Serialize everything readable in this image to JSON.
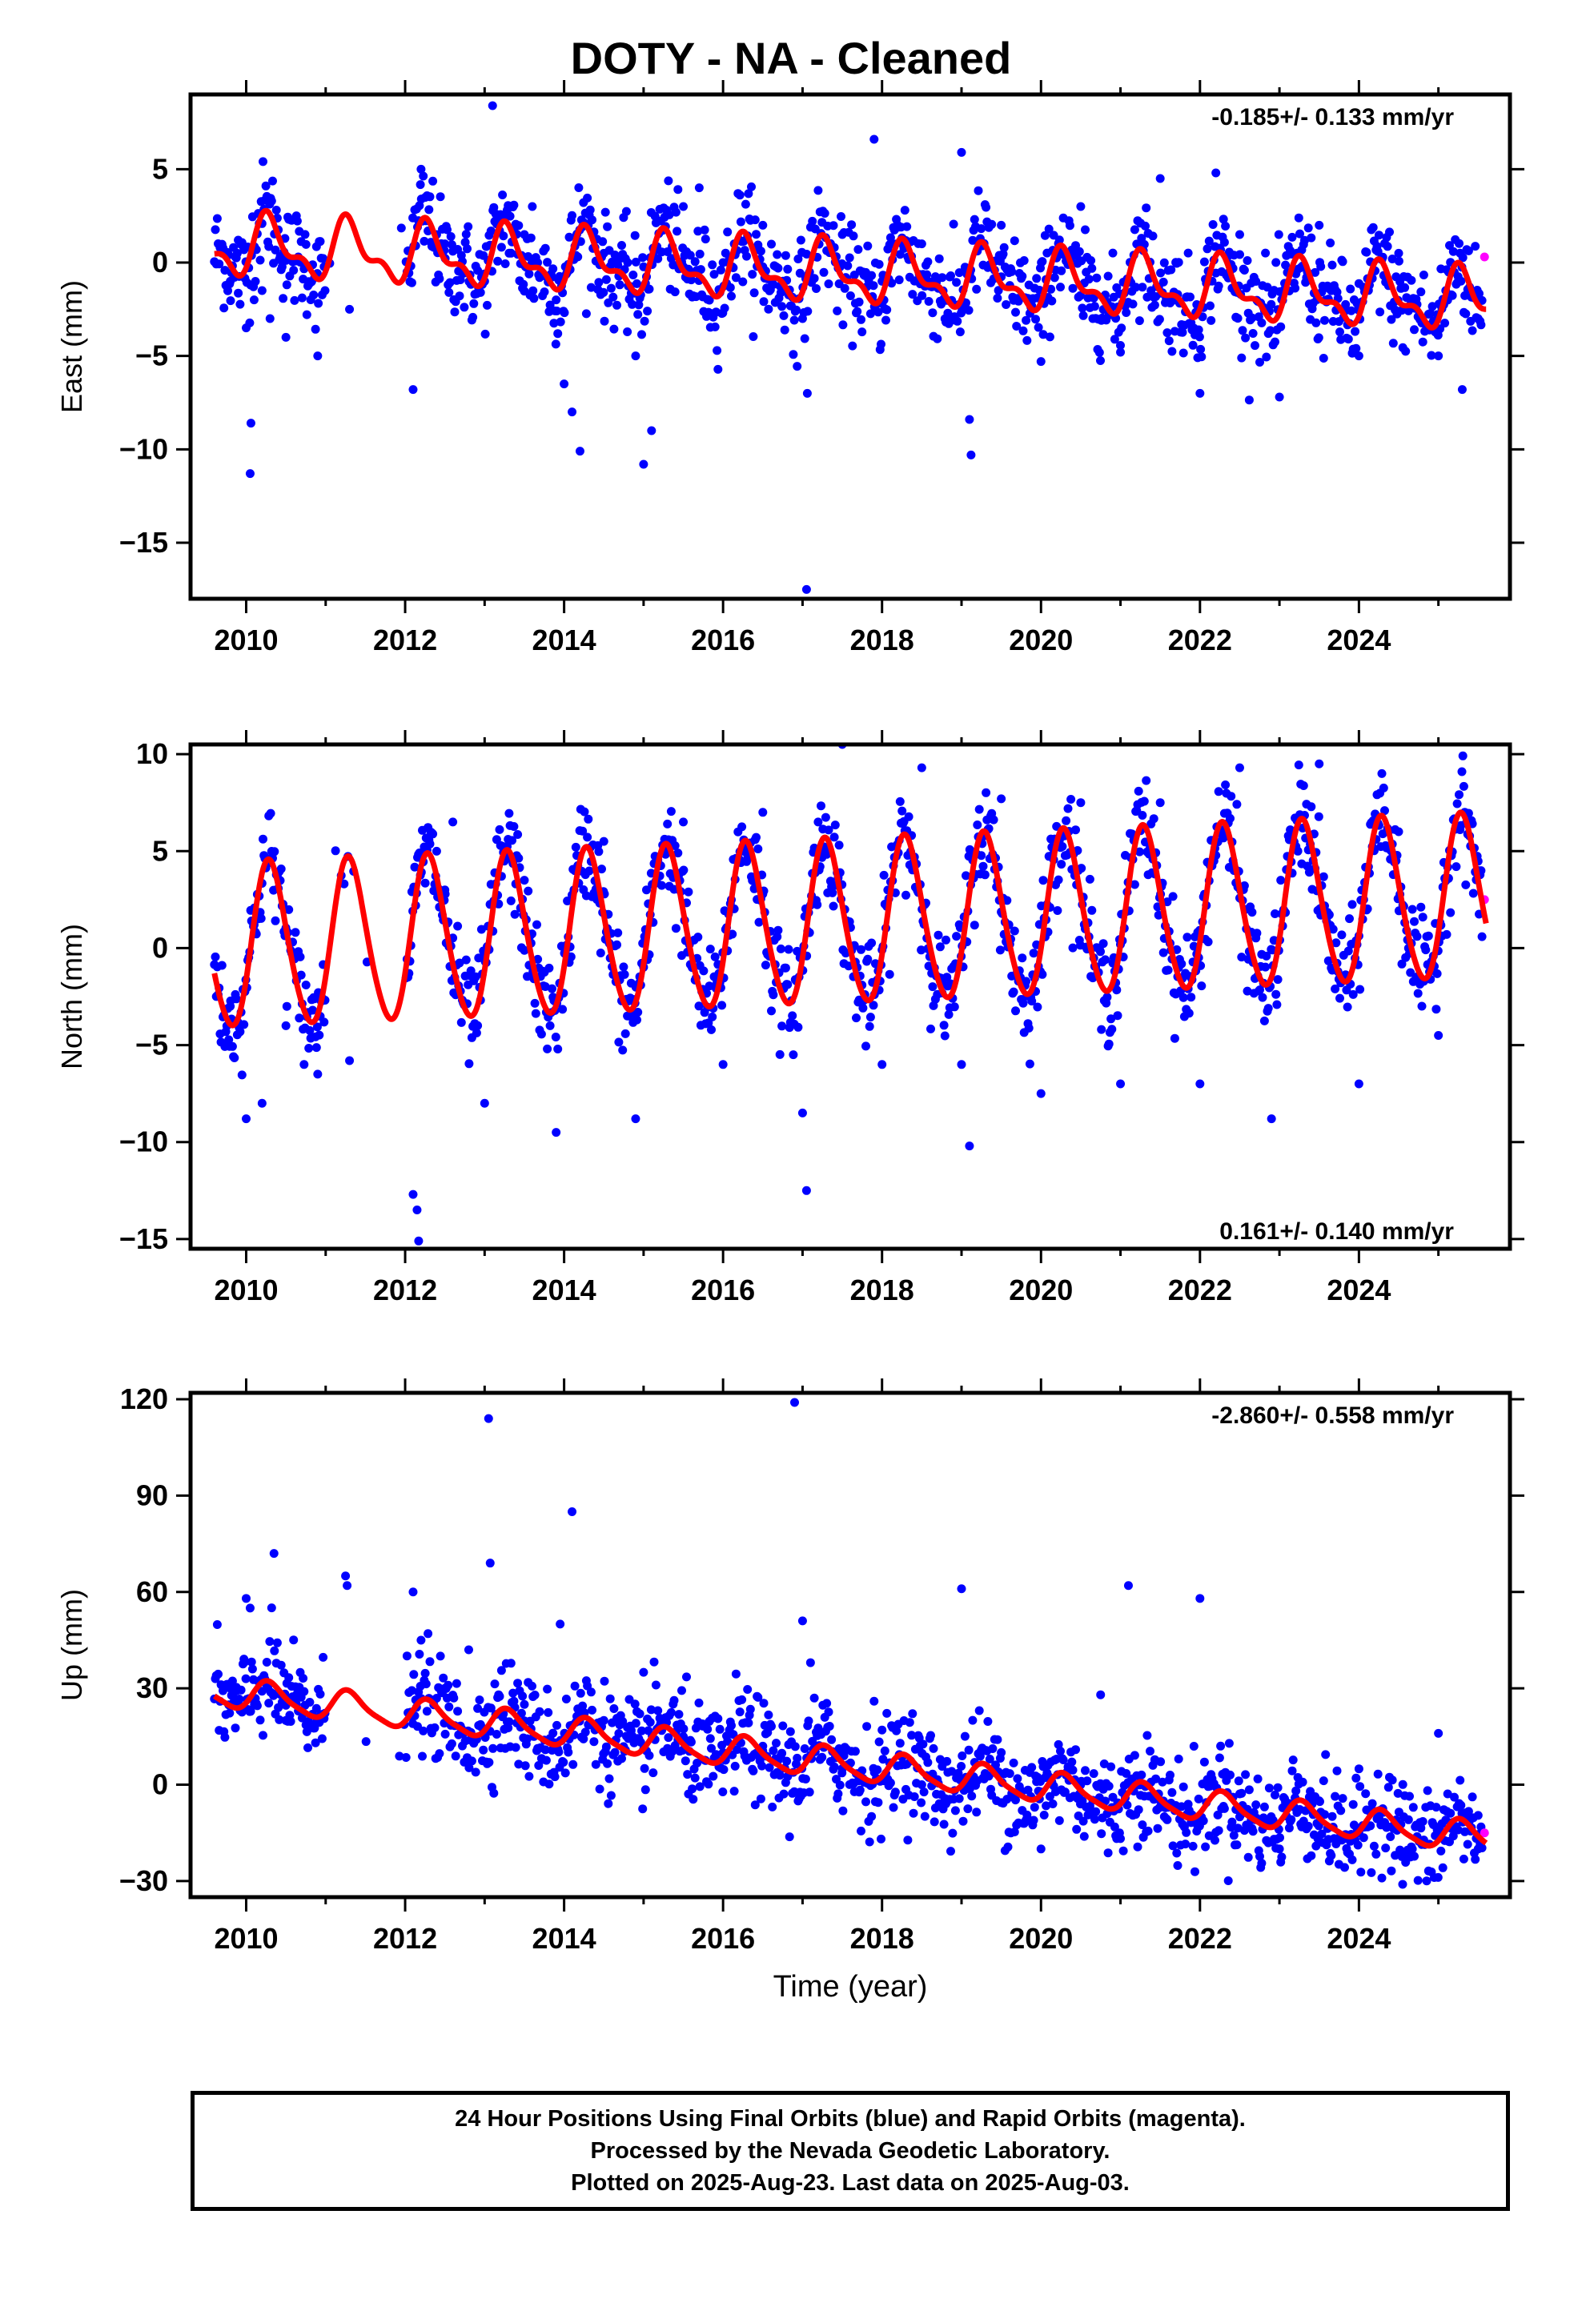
{
  "title": "DOTY  - NA - Cleaned",
  "x_axis_label": "Time (year)",
  "footer": {
    "line1": "24 Hour Positions Using Final Orbits (blue) and Rapid Orbits (magenta).",
    "line2": "Processed by the Nevada Geodetic Laboratory.",
    "line3": "Plotted on 2025-Aug-23. Last data on 2025-Aug-03."
  },
  "colors": {
    "final_orbits_points": "#0000ff",
    "rapid_orbits_points": "#ff00ff",
    "model_fit_line": "#ff0000",
    "frame": "#000000"
  },
  "chart_data": [
    {
      "type": "scatter",
      "ylabel": "East (mm)",
      "xlabel": "",
      "xlim": [
        2009.3,
        2025.9
      ],
      "ylim": [
        -18,
        9
      ],
      "x_ticks": [
        "2010",
        "2012",
        "2014",
        "2016",
        "2018",
        "2020",
        "2022",
        "2024"
      ],
      "y_ticks": [
        "5",
        "0",
        "−5",
        "−10",
        "−15"
      ],
      "y_tick_values": [
        5,
        0,
        -5,
        -10,
        -15
      ],
      "rate_label": "-0.185+/- 0.133 mm/yr",
      "rate_position": "top-right",
      "model": {
        "rate": -0.185,
        "offset": 0.9,
        "annual_amplitude": 1.4,
        "semiannual_amplitude": 0.7,
        "start": 2009.6,
        "end": 2025.6
      },
      "final_orbit_data": [
        [
          2009.7,
          0.5
        ],
        [
          2009.8,
          -1.0
        ],
        [
          2009.9,
          1.2
        ],
        [
          2010.0,
          -3.5
        ],
        [
          2010.05,
          -11.3
        ],
        [
          2010.06,
          -8.6
        ],
        [
          2010.1,
          -2.0
        ],
        [
          2010.2,
          -1.5
        ],
        [
          2010.3,
          -3.0
        ],
        [
          2010.5,
          -4.0
        ],
        [
          2010.9,
          -5.0
        ],
        [
          2011.3,
          -2.5
        ],
        [
          2012.1,
          -6.8
        ],
        [
          2012.2,
          5.0
        ],
        [
          2012.5,
          1.0
        ],
        [
          2013.0,
          -1.0
        ],
        [
          2013.1,
          8.4
        ],
        [
          2013.5,
          1.5
        ],
        [
          2013.6,
          3.0
        ],
        [
          2013.9,
          -2.0
        ],
        [
          2014.0,
          -6.5
        ],
        [
          2014.1,
          -8.0
        ],
        [
          2014.2,
          -10.1
        ],
        [
          2014.5,
          0.5
        ],
        [
          2014.8,
          0.0
        ],
        [
          2014.9,
          -5.0
        ],
        [
          2015.0,
          -10.8
        ],
        [
          2015.1,
          -9.0
        ],
        [
          2015.5,
          3.0
        ],
        [
          2015.7,
          4.0
        ],
        [
          2016.0,
          0.0
        ],
        [
          2016.5,
          2.0
        ],
        [
          2017.0,
          -3.0
        ],
        [
          2017.05,
          -17.5
        ],
        [
          2017.06,
          -7.0
        ],
        [
          2017.5,
          1.5
        ],
        [
          2017.9,
          6.6
        ],
        [
          2018.0,
          -1.0
        ],
        [
          2018.5,
          1.0
        ],
        [
          2019.0,
          5.9
        ],
        [
          2019.1,
          -8.4
        ],
        [
          2019.12,
          -10.3
        ],
        [
          2019.5,
          2.0
        ],
        [
          2020.0,
          -5.3
        ],
        [
          2020.5,
          3.0
        ],
        [
          2021.0,
          -4.8
        ],
        [
          2021.5,
          4.5
        ],
        [
          2022.0,
          -7.0
        ],
        [
          2022.2,
          4.8
        ],
        [
          2022.5,
          1.5
        ],
        [
          2023.0,
          -7.2
        ],
        [
          2023.5,
          2.0
        ],
        [
          2024.0,
          -5.0
        ],
        [
          2024.5,
          0.5
        ],
        [
          2025.0,
          -5.0
        ],
        [
          2025.3,
          -6.8
        ],
        [
          2025.5,
          -3.0
        ]
      ],
      "rapid_orbit_data": [
        [
          2025.58,
          0.3
        ]
      ]
    },
    {
      "type": "scatter",
      "ylabel": "North (mm)",
      "xlabel": "",
      "xlim": [
        2009.3,
        2025.9
      ],
      "ylim": [
        -15.5,
        10.5
      ],
      "x_ticks": [
        "2010",
        "2012",
        "2014",
        "2016",
        "2018",
        "2020",
        "2022",
        "2024"
      ],
      "y_ticks": [
        "10",
        "5",
        "0",
        "−5",
        "−10",
        "−15"
      ],
      "y_tick_values": [
        10,
        5,
        0,
        -5,
        -10,
        -15
      ],
      "rate_label": "0.161+/- 0.140 mm/yr",
      "rate_position": "bottom-right",
      "model": {
        "rate": 0.161,
        "offset": 0.0,
        "annual_amplitude": 4.2,
        "semiannual_amplitude": 0.4,
        "start": 2009.6,
        "end": 2025.6
      },
      "final_orbit_data": [
        [
          2009.8,
          -3.0
        ],
        [
          2010.0,
          -8.8
        ],
        [
          2010.1,
          1.2
        ],
        [
          2010.2,
          -8.0
        ],
        [
          2010.5,
          -4.0
        ],
        [
          2010.9,
          -6.5
        ],
        [
          2011.3,
          -5.8
        ],
        [
          2012.1,
          -12.7
        ],
        [
          2012.15,
          -13.5
        ],
        [
          2012.17,
          -15.1
        ],
        [
          2012.5,
          3.0
        ],
        [
          2012.6,
          6.5
        ],
        [
          2013.0,
          -8.0
        ],
        [
          2013.5,
          3.5
        ],
        [
          2013.9,
          -9.5
        ],
        [
          2014.5,
          5.5
        ],
        [
          2014.9,
          -8.8
        ],
        [
          2015.5,
          6.5
        ],
        [
          2016.0,
          -6.0
        ],
        [
          2016.5,
          7.0
        ],
        [
          2017.0,
          -8.5
        ],
        [
          2017.05,
          -12.5
        ],
        [
          2017.5,
          10.5
        ],
        [
          2018.0,
          -6.0
        ],
        [
          2018.5,
          9.3
        ],
        [
          2019.0,
          -6.0
        ],
        [
          2019.1,
          -10.2
        ],
        [
          2019.5,
          7.7
        ],
        [
          2020.0,
          -7.5
        ],
        [
          2020.5,
          7.5
        ],
        [
          2021.0,
          -7.0
        ],
        [
          2021.5,
          7.5
        ],
        [
          2022.0,
          -7.0
        ],
        [
          2022.5,
          9.3
        ],
        [
          2022.9,
          -8.8
        ],
        [
          2023.5,
          9.5
        ],
        [
          2024.0,
          -7.0
        ],
        [
          2024.5,
          6.0
        ],
        [
          2025.0,
          -4.5
        ],
        [
          2025.5,
          4.0
        ]
      ],
      "rapid_orbit_data": [
        [
          2025.58,
          2.5
        ]
      ]
    },
    {
      "type": "scatter",
      "ylabel": "Up (mm)",
      "xlabel": "Time (year)",
      "xlim": [
        2009.3,
        2025.9
      ],
      "ylim": [
        -35,
        122
      ],
      "x_ticks": [
        "2010",
        "2012",
        "2014",
        "2016",
        "2018",
        "2020",
        "2022",
        "2024"
      ],
      "y_ticks": [
        "120",
        "90",
        "60",
        "30",
        "0",
        "−30"
      ],
      "y_tick_values": [
        120,
        90,
        60,
        30,
        0,
        -30
      ],
      "rate_label": "-2.860+/- 0.558 mm/yr",
      "rate_position": "top-right",
      "model": {
        "rate": -2.86,
        "offset": 29.0,
        "annual_amplitude": 4.5,
        "semiannual_amplitude": 1.0,
        "start": 2009.6,
        "end": 2025.6
      },
      "final_orbit_data": [
        [
          2009.8,
          30.0
        ],
        [
          2010.0,
          58.0
        ],
        [
          2010.05,
          55.0
        ],
        [
          2010.35,
          72.0
        ],
        [
          2010.5,
          20.0
        ],
        [
          2011.25,
          65.0
        ],
        [
          2011.27,
          62.0
        ],
        [
          2012.1,
          60.0
        ],
        [
          2012.2,
          45.0
        ],
        [
          2012.5,
          30.0
        ],
        [
          2012.8,
          42.0
        ],
        [
          2013.05,
          114.0
        ],
        [
          2013.07,
          69.0
        ],
        [
          2013.5,
          25.0
        ],
        [
          2013.95,
          50.0
        ],
        [
          2014.1,
          85.0
        ],
        [
          2014.5,
          20.0
        ],
        [
          2015.0,
          35.0
        ],
        [
          2015.5,
          15.0
        ],
        [
          2016.0,
          10.0
        ],
        [
          2016.5,
          12.0
        ],
        [
          2016.9,
          119.0
        ],
        [
          2017.0,
          51.0
        ],
        [
          2017.1,
          38.0
        ],
        [
          2017.5,
          5.0
        ],
        [
          2017.9,
          26.0
        ],
        [
          2018.5,
          0.0
        ],
        [
          2019.0,
          61.0
        ],
        [
          2019.5,
          10.0
        ],
        [
          2020.0,
          -20.0
        ],
        [
          2020.5,
          0.0
        ],
        [
          2020.75,
          28.0
        ],
        [
          2021.1,
          62.0
        ],
        [
          2021.5,
          -5.0
        ],
        [
          2022.0,
          58.0
        ],
        [
          2022.5,
          -10.0
        ],
        [
          2023.0,
          -20.0
        ],
        [
          2023.5,
          -5.0
        ],
        [
          2024.0,
          -15.0
        ],
        [
          2024.55,
          -31.0
        ],
        [
          2025.0,
          16.0
        ],
        [
          2025.5,
          -20.0
        ]
      ],
      "rapid_orbit_data": [
        [
          2025.58,
          -15.0
        ]
      ]
    }
  ]
}
